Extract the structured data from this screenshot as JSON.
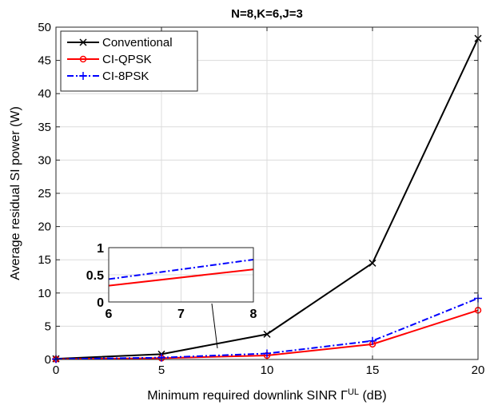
{
  "chart_data": {
    "type": "line",
    "title": "N=8,K=6,J=3",
    "xlabel": "Minimum required downlink SINR Γ",
    "xlabel_superscript": "UL",
    "xlabel_unit": "(dB)",
    "ylabel": "Average residual SI power (W)",
    "x": [
      0,
      5,
      10,
      15,
      20
    ],
    "xlim": [
      0,
      20
    ],
    "ylim": [
      0,
      50
    ],
    "xticks": [
      "0",
      "5",
      "10",
      "15",
      "20"
    ],
    "yticks": [
      "0",
      "5",
      "10",
      "15",
      "20",
      "25",
      "30",
      "35",
      "40",
      "45",
      "50"
    ],
    "grid": true,
    "legend_position": "top-left",
    "series": [
      {
        "name": "Conventional",
        "values": [
          0.1,
          0.8,
          3.8,
          14.5,
          48.3
        ],
        "color": "#000000",
        "marker": "x",
        "dash": "solid"
      },
      {
        "name": "CI-QPSK",
        "values": [
          0.05,
          0.2,
          0.6,
          2.3,
          7.4
        ],
        "color": "#ff0000",
        "marker": "o",
        "dash": "solid"
      },
      {
        "name": "CI-8PSK",
        "values": [
          0.06,
          0.28,
          0.9,
          2.8,
          9.2
        ],
        "color": "#0000ff",
        "marker": "+",
        "dash": "dashdot"
      }
    ],
    "inset": {
      "xlim": [
        6,
        8
      ],
      "ylim": [
        0,
        1
      ],
      "xticks": [
        "6",
        "7",
        "8"
      ],
      "yticks": [
        "0",
        "0.5",
        "1"
      ],
      "series_values": {
        "CI-QPSK": [
          0.3,
          0.6
        ],
        "CI-8PSK": [
          0.42,
          0.78
        ]
      }
    }
  }
}
